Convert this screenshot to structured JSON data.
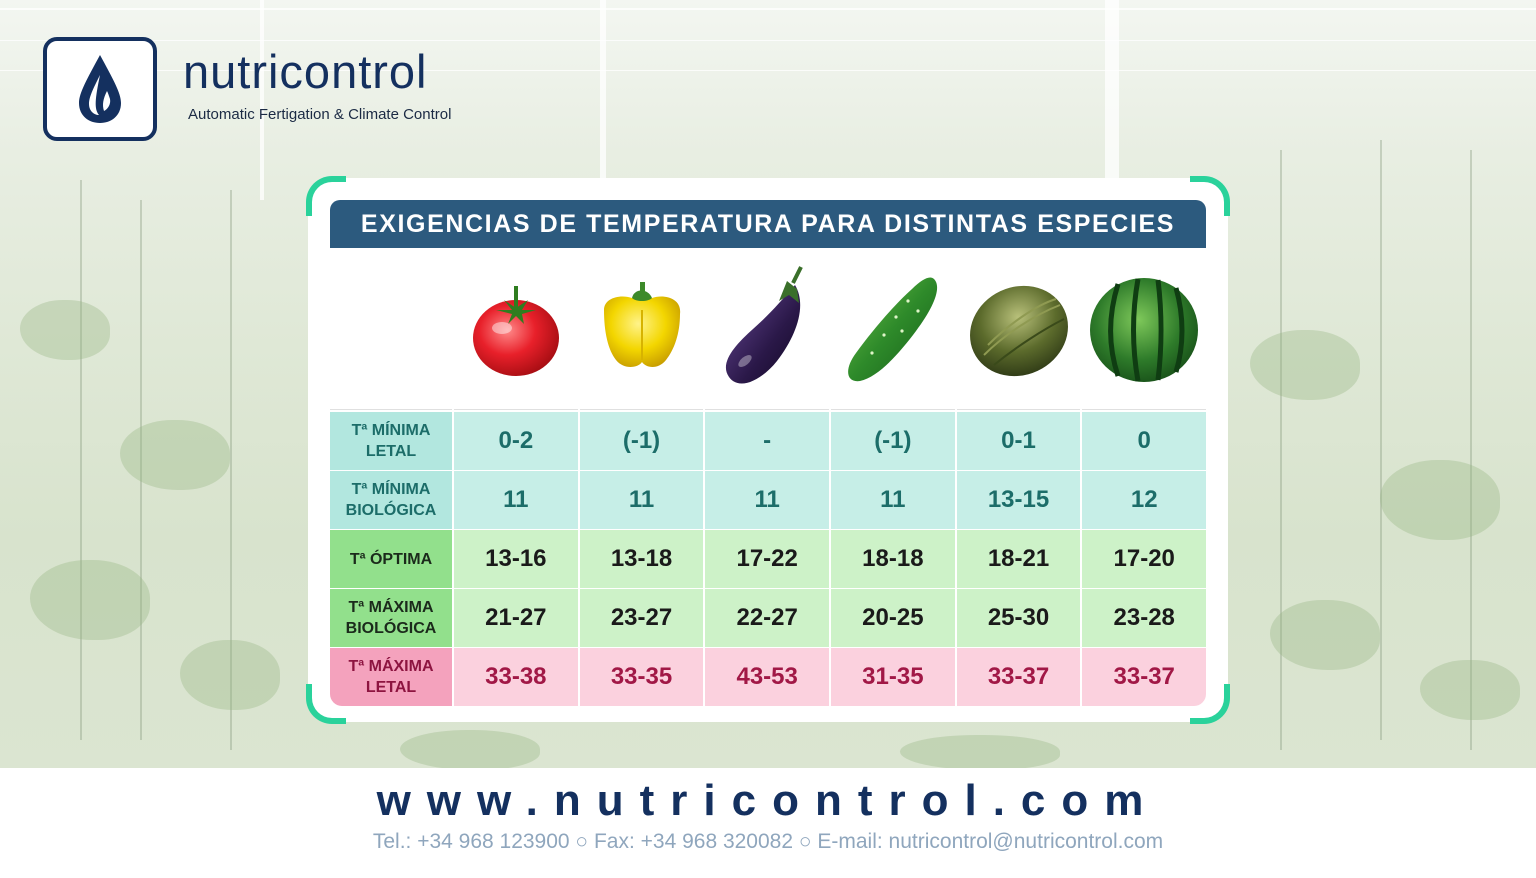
{
  "brand": {
    "name": "nutricontrol",
    "tagline": "Automatic Fertigation & Climate Control"
  },
  "table": {
    "title": "EXIGENCIAS DE TEMPERATURA PARA DISTINTAS ESPECIES",
    "crops": [
      "tomato",
      "pepper",
      "eggplant",
      "cucumber",
      "melon",
      "watermelon"
    ],
    "rows": [
      {
        "label": "Tª MÍNIMA LETAL",
        "values": [
          "0-2",
          "(-1)",
          "-",
          "(-1)",
          "0-1",
          "0"
        ]
      },
      {
        "label": "Tª MÍNIMA BIOLÓGICA",
        "values": [
          "11",
          "11",
          "11",
          "11",
          "13-15",
          "12"
        ]
      },
      {
        "label": "Tª ÓPTIMA",
        "values": [
          "13-16",
          "13-18",
          "17-22",
          "18-18",
          "18-21",
          "17-20"
        ]
      },
      {
        "label": "Tª MÁXIMA BIOLÓGICA",
        "values": [
          "21-27",
          "23-27",
          "22-27",
          "20-25",
          "25-30",
          "23-28"
        ]
      },
      {
        "label": "Tª MÁXIMA LETAL",
        "values": [
          "33-38",
          "33-35",
          "43-53",
          "31-35",
          "33-37",
          "33-37"
        ]
      }
    ]
  },
  "footer": {
    "url": "www.nutricontrol.com",
    "contact": "Tel.: +34 968 123900 ○ Fax: +34 968 320082 ○ E-mail: nutricontrol@nutricontrol.com"
  },
  "colors": {
    "brand_blue": "#14305f",
    "accent_green": "#2ad29b",
    "title_bar": "#2c5a7e"
  }
}
